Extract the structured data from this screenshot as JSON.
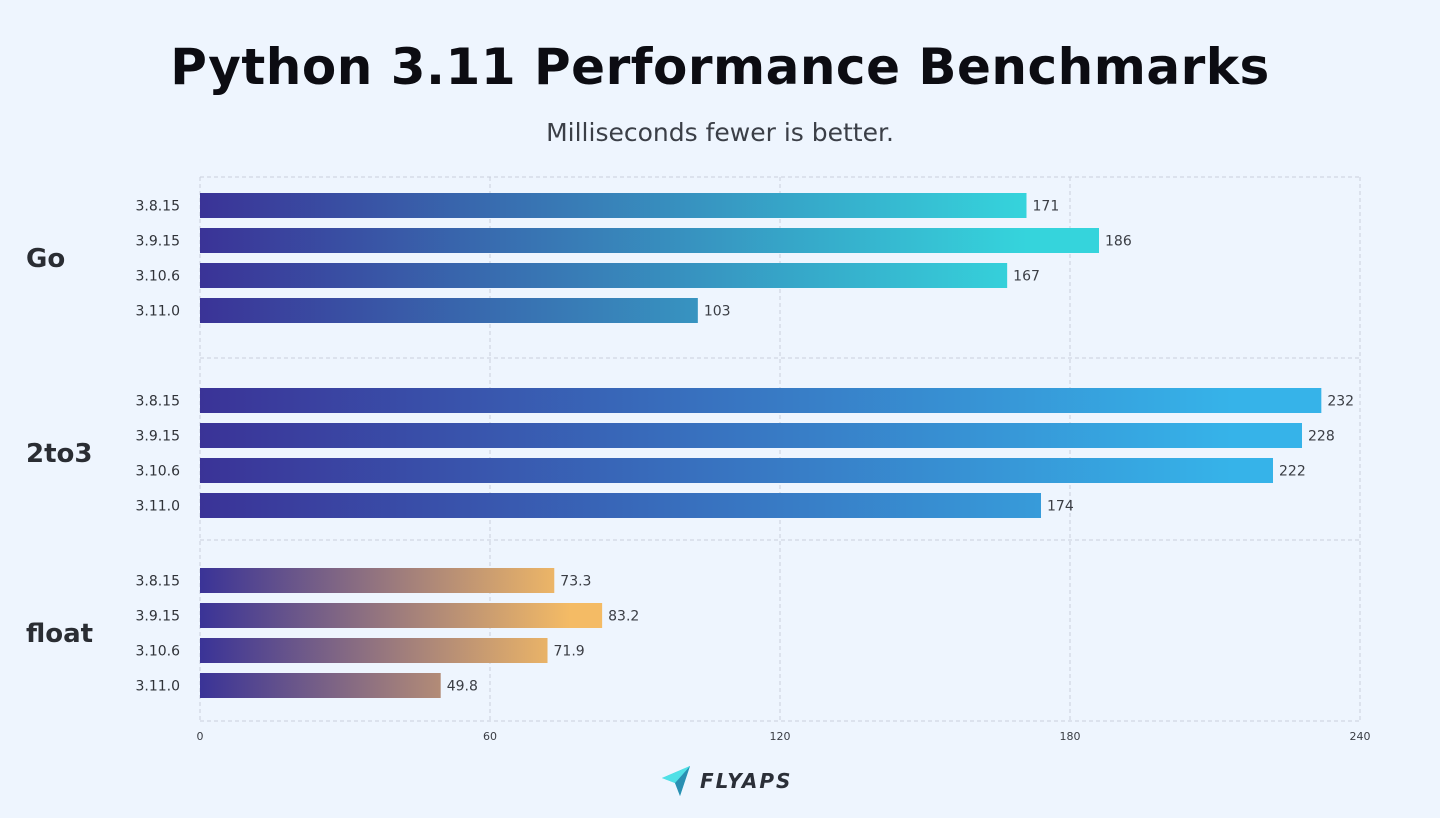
{
  "title": "Python 3.11 Performance Benchmarks",
  "subtitle": "Milliseconds fewer is better.",
  "logo": {
    "text": "FLYAPS",
    "icon": "paper-plane-icon"
  },
  "chart_data": {
    "type": "bar",
    "orientation": "horizontal",
    "title": "Python 3.11 Performance Benchmarks",
    "subtitle": "Milliseconds fewer is better.",
    "xlim": [
      0,
      240
    ],
    "xticks": [
      0,
      60,
      120,
      180,
      240
    ],
    "grid": true,
    "categories": [
      "3.8.15",
      "3.9.15",
      "3.10.6",
      "3.11.0"
    ],
    "groups": [
      {
        "name": "Go",
        "values": [
          171,
          186,
          167,
          103
        ],
        "value_labels": [
          "171",
          "186",
          "167",
          "103"
        ],
        "gradient": [
          "#3a3397",
          "#35d4dc"
        ]
      },
      {
        "name": "2to3",
        "values": [
          232,
          228,
          222,
          174
        ],
        "value_labels": [
          "232",
          "228",
          "222",
          "174"
        ],
        "gradient": [
          "#3a3397",
          "#36b3e9"
        ]
      },
      {
        "name": "float",
        "values": [
          73.3,
          83.2,
          71.9,
          49.8
        ],
        "value_labels": [
          "73.3",
          "83.2",
          "71.9",
          "49.8"
        ],
        "gradient": [
          "#3a3397",
          "#f4bb65"
        ]
      }
    ]
  }
}
